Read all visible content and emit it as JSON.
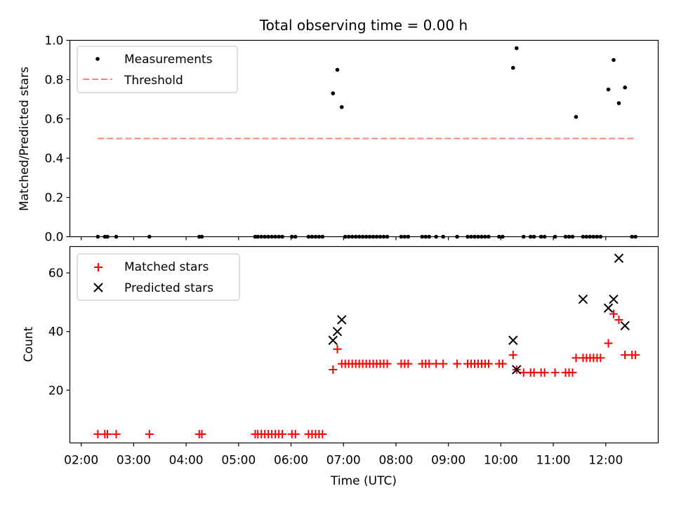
{
  "chart_data": [
    {
      "type": "scatter",
      "title": "Total observing time = 0.00 h",
      "xlabel": "",
      "ylabel": "Matched/Predicted stars",
      "xlim": [
        "01:47",
        "13:00"
      ],
      "ylim": [
        0.0,
        1.0
      ],
      "yticks": [
        "0.0",
        "0.2",
        "0.4",
        "0.6",
        "0.8",
        "1.0"
      ],
      "legend": {
        "placement": "top-left",
        "entries": [
          "Measurements",
          "Threshold"
        ]
      },
      "colors": {
        "measurements": "#000000",
        "threshold": "#ff7f7f"
      },
      "series": [
        {
          "name": "Measurements",
          "x": [
            "02:19",
            "02:27",
            "02:30",
            "02:40",
            "03:18",
            "04:15",
            "04:18",
            "05:19",
            "05:22",
            "05:26",
            "05:30",
            "05:34",
            "05:38",
            "05:42",
            "05:46",
            "05:50",
            "06:01",
            "06:05",
            "06:20",
            "06:24",
            "06:28",
            "06:32",
            "06:36",
            "06:48",
            "06:53",
            "06:58",
            "07:02",
            "07:06",
            "07:10",
            "07:14",
            "07:18",
            "07:22",
            "07:26",
            "07:30",
            "07:34",
            "07:38",
            "07:42",
            "07:46",
            "07:50",
            "08:06",
            "08:10",
            "08:14",
            "08:30",
            "08:34",
            "08:38",
            "08:46",
            "08:54",
            "09:10",
            "09:22",
            "09:26",
            "09:30",
            "09:34",
            "09:38",
            "09:42",
            "09:46",
            "09:58",
            "10:02",
            "10:14",
            "10:18",
            "10:26",
            "10:34",
            "10:38",
            "10:46",
            "10:50",
            "11:02",
            "11:14",
            "11:18",
            "11:22",
            "11:26",
            "11:34",
            "11:38",
            "11:42",
            "11:46",
            "11:50",
            "11:54",
            "12:03",
            "12:09",
            "12:15",
            "12:22",
            "12:30",
            "12:34"
          ],
          "y": [
            0,
            0,
            0,
            0,
            0,
            0,
            0,
            0,
            0,
            0,
            0,
            0,
            0,
            0,
            0,
            0,
            0,
            0,
            0,
            0,
            0,
            0,
            0,
            0.73,
            0.85,
            0.66,
            0,
            0,
            0,
            0,
            0,
            0,
            0,
            0,
            0,
            0,
            0,
            0,
            0,
            0,
            0,
            0,
            0,
            0,
            0,
            0,
            0,
            0,
            0,
            0,
            0,
            0,
            0,
            0,
            0,
            0,
            0,
            0.86,
            0.96,
            0,
            0,
            0,
            0,
            0,
            0,
            0,
            0,
            0,
            0.61,
            0,
            0,
            0,
            0,
            0,
            0,
            0.75,
            0.9,
            0.68,
            0.76,
            0,
            0
          ]
        },
        {
          "name": "Threshold",
          "x": [
            "02:19",
            "12:34"
          ],
          "y": [
            0.5,
            0.5
          ]
        }
      ]
    },
    {
      "type": "scatter",
      "title": "",
      "xlabel": "Time (UTC)",
      "ylabel": "Count",
      "xlim": [
        "01:47",
        "13:00"
      ],
      "ylim": [
        2,
        69
      ],
      "yticks": [
        "20",
        "40",
        "60"
      ],
      "xticks": [
        "02:00",
        "03:00",
        "04:00",
        "05:00",
        "06:00",
        "07:00",
        "08:00",
        "09:00",
        "10:00",
        "11:00",
        "12:00"
      ],
      "legend": {
        "placement": "top-left",
        "entries": [
          "Matched stars",
          "Predicted stars"
        ]
      },
      "colors": {
        "matched": "#ff0000",
        "predicted": "#000000"
      },
      "series": [
        {
          "name": "Matched stars",
          "x": [
            "02:19",
            "02:27",
            "02:30",
            "02:40",
            "03:18",
            "04:15",
            "04:18",
            "05:19",
            "05:22",
            "05:26",
            "05:30",
            "05:34",
            "05:38",
            "05:42",
            "05:46",
            "05:50",
            "06:01",
            "06:05",
            "06:20",
            "06:24",
            "06:28",
            "06:32",
            "06:36",
            "06:48",
            "06:53",
            "06:58",
            "07:02",
            "07:06",
            "07:10",
            "07:14",
            "07:18",
            "07:22",
            "07:26",
            "07:30",
            "07:34",
            "07:38",
            "07:42",
            "07:46",
            "07:50",
            "08:06",
            "08:10",
            "08:14",
            "08:30",
            "08:34",
            "08:38",
            "08:46",
            "08:54",
            "09:10",
            "09:22",
            "09:26",
            "09:30",
            "09:34",
            "09:38",
            "09:42",
            "09:46",
            "09:58",
            "10:02",
            "10:14",
            "10:18",
            "10:26",
            "10:34",
            "10:38",
            "10:46",
            "10:50",
            "11:02",
            "11:14",
            "11:18",
            "11:22",
            "11:26",
            "11:34",
            "11:38",
            "11:42",
            "11:46",
            "11:50",
            "11:54",
            "12:03",
            "12:09",
            "12:15",
            "12:22",
            "12:30",
            "12:34"
          ],
          "y": [
            5,
            5,
            5,
            5,
            5,
            5,
            5,
            5,
            5,
            5,
            5,
            5,
            5,
            5,
            5,
            5,
            5,
            5,
            5,
            5,
            5,
            5,
            5,
            27,
            34,
            29,
            29,
            29,
            29,
            29,
            29,
            29,
            29,
            29,
            29,
            29,
            29,
            29,
            29,
            29,
            29,
            29,
            29,
            29,
            29,
            29,
            29,
            29,
            29,
            29,
            29,
            29,
            29,
            29,
            29,
            29,
            29,
            32,
            27,
            26,
            26,
            26,
            26,
            26,
            26,
            26,
            26,
            26,
            31,
            31,
            31,
            31,
            31,
            31,
            31,
            36,
            46,
            44,
            32,
            32,
            32
          ]
        },
        {
          "name": "Predicted stars",
          "x": [
            "06:48",
            "06:53",
            "06:58",
            "10:14",
            "10:18",
            "11:34",
            "12:03",
            "12:09",
            "12:15",
            "12:22"
          ],
          "y": [
            37,
            40,
            44,
            37,
            27,
            51,
            48,
            51,
            65,
            42
          ]
        }
      ]
    }
  ]
}
